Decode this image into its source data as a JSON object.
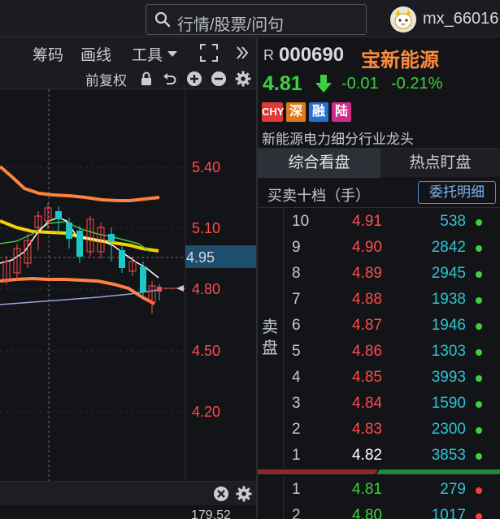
{
  "header": {
    "search_placeholder": "行情/股票/问句",
    "username": "mx_66016"
  },
  "chart_toolbar": {
    "items": [
      "筹码",
      "画线",
      "工具"
    ],
    "adjust_label": "前复权"
  },
  "chart": {
    "price_labels": [
      "5.40",
      "5.10",
      "4.80",
      "4.50",
      "4.20"
    ],
    "current_price_tag": "4.95",
    "indicator_value": "179.52",
    "colors": {
      "up": "#ff4a4a",
      "down": "#1ec8c8",
      "ma5": "#ffffff",
      "ma10": "#f5d000",
      "ma20": "#3cc83c",
      "ma60": "#a0a0e0",
      "band": "#ff8040"
    }
  },
  "quote": {
    "market_prefix": "R",
    "code": "000690",
    "name": "宝新能源",
    "price": "4.81",
    "change": "-0.01",
    "change_pct": "-0.21%",
    "badges": [
      {
        "text": "CHY",
        "color": "#e03a3a"
      },
      {
        "text": "深",
        "color": "#e07a1a"
      },
      {
        "text": "融",
        "color": "#2a6fd6"
      },
      {
        "text": "陆",
        "color": "#d02a8a"
      }
    ],
    "description": "新能源电力细分行业龙头"
  },
  "tabs": [
    "综合看盘",
    "热点盯盘"
  ],
  "order_book": {
    "title": "买卖十档（手）",
    "detail_button": "委托明细",
    "sell_label": "卖\n盘",
    "sell": [
      {
        "level": "10",
        "price": "4.91",
        "volume": "538",
        "price_color": "#ff4a4a",
        "dot": "#3ad23a"
      },
      {
        "level": "9",
        "price": "4.90",
        "volume": "2842",
        "price_color": "#ff4a4a",
        "dot": "#3ad23a"
      },
      {
        "level": "8",
        "price": "4.89",
        "volume": "2945",
        "price_color": "#ff4a4a",
        "dot": "#3ad23a"
      },
      {
        "level": "7",
        "price": "4.88",
        "volume": "1938",
        "price_color": "#ff4a4a",
        "dot": "#3ad23a"
      },
      {
        "level": "6",
        "price": "4.87",
        "volume": "1946",
        "price_color": "#ff4a4a",
        "dot": "#3ad23a"
      },
      {
        "level": "5",
        "price": "4.86",
        "volume": "1303",
        "price_color": "#ff4a4a",
        "dot": "#3ad23a"
      },
      {
        "level": "4",
        "price": "4.85",
        "volume": "3993",
        "price_color": "#ff4a4a",
        "dot": "#3ad23a"
      },
      {
        "level": "3",
        "price": "4.84",
        "volume": "1590",
        "price_color": "#ff4a4a",
        "dot": "#3ad23a"
      },
      {
        "level": "2",
        "price": "4.83",
        "volume": "2300",
        "price_color": "#ff4a4a",
        "dot": "#3ad23a"
      },
      {
        "level": "1",
        "price": "4.82",
        "volume": "3853",
        "price_color": "#ffffff",
        "dot": "#3ad23a"
      }
    ],
    "buy": [
      {
        "level": "1",
        "price": "4.81",
        "volume": "279",
        "price_color": "#3ad23a",
        "dot": "#ff3a3a"
      },
      {
        "level": "2",
        "price": "4.80",
        "volume": "1017",
        "price_color": "#3ad23a",
        "dot": "#ff3a3a"
      }
    ]
  }
}
